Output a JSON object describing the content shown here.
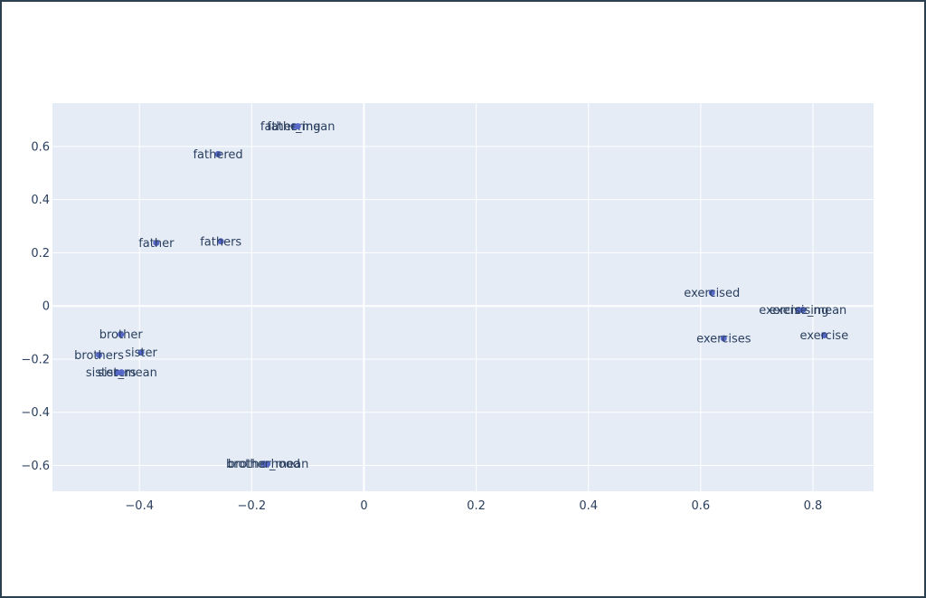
{
  "chart_data": {
    "type": "scatter",
    "title": "",
    "xlabel": "",
    "ylabel": "",
    "xlim": [
      -0.555,
      0.908
    ],
    "ylim": [
      -0.697,
      0.763
    ],
    "x_ticks": [
      -0.4,
      -0.2,
      0,
      0.2,
      0.4,
      0.6,
      0.8
    ],
    "x_tick_labels": [
      "−0.4",
      "−0.2",
      "0",
      "0.2",
      "0.4",
      "0.6",
      "0.8"
    ],
    "y_ticks": [
      0.6,
      0.4,
      0.2,
      0,
      -0.2,
      -0.4,
      -0.6
    ],
    "y_tick_labels": [
      "0.6",
      "0.4",
      "0.2",
      "0",
      "−0.2",
      "−0.4",
      "−0.6"
    ],
    "grid": true,
    "marker_color": "#5668c8",
    "plot_bg": "#e5ecf6",
    "points": [
      {
        "label": "fathering",
        "x": -0.125,
        "y": 0.676
      },
      {
        "label": "father_mean",
        "x": -0.118,
        "y": 0.676
      },
      {
        "label": "fathered",
        "x": -0.26,
        "y": 0.571
      },
      {
        "label": "father",
        "x": -0.37,
        "y": 0.237
      },
      {
        "label": "fathers",
        "x": -0.255,
        "y": 0.243
      },
      {
        "label": "brother",
        "x": -0.433,
        "y": -0.107
      },
      {
        "label": "sister",
        "x": -0.397,
        "y": -0.175
      },
      {
        "label": "brothers",
        "x": -0.472,
        "y": -0.185
      },
      {
        "label": "sisters",
        "x": -0.44,
        "y": -0.25
      },
      {
        "label": "sister_mean",
        "x": -0.432,
        "y": -0.25
      },
      {
        "label": "brotherhood",
        "x": -0.178,
        "y": -0.594
      },
      {
        "label": "brother_mean",
        "x": -0.172,
        "y": -0.594
      },
      {
        "label": "exercised",
        "x": 0.62,
        "y": 0.05
      },
      {
        "label": "exercising",
        "x": 0.775,
        "y": -0.015
      },
      {
        "label": "exercise_mean",
        "x": 0.782,
        "y": -0.015
      },
      {
        "label": "exercises",
        "x": 0.641,
        "y": -0.122
      },
      {
        "label": "exercise",
        "x": 0.82,
        "y": -0.11
      }
    ]
  }
}
